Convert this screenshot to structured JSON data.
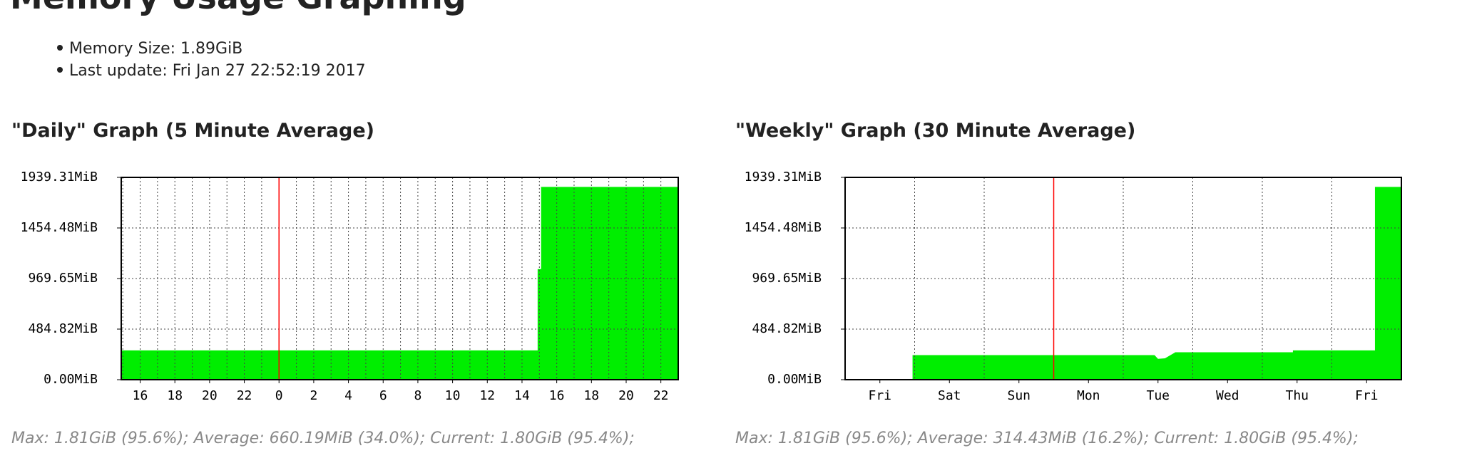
{
  "page": {
    "title": "Memory Usage Graphing",
    "items": [
      "Memory Size: 1.89GiB",
      "Last update: Fri Jan 27 22:52:19 2017"
    ]
  },
  "chart_data": [
    {
      "type": "area",
      "title": "\"Daily\" Graph (5 Minute Average)",
      "x": [
        14.91,
        38.9,
        38.9,
        39.1,
        39.1,
        47.0
      ],
      "values": [
        281,
        281,
        1060,
        1060,
        1848,
        1848
      ],
      "color": "#00ee00",
      "xlim": [
        14.91,
        47.0
      ],
      "xticks": [
        16,
        18,
        20,
        22,
        {
          "value": 24,
          "label": "0"
        },
        {
          "value": 26,
          "label": "2"
        },
        {
          "value": 28,
          "label": "4"
        },
        {
          "value": 30,
          "label": "6"
        },
        {
          "value": 32,
          "label": "8"
        },
        {
          "value": 34,
          "label": "10"
        },
        {
          "value": 36,
          "label": "12"
        },
        {
          "value": 38,
          "label": "14"
        },
        {
          "value": 40,
          "label": "16"
        },
        {
          "value": 42,
          "label": "18"
        },
        {
          "value": 44,
          "label": "20"
        },
        {
          "value": 46,
          "label": "22"
        }
      ],
      "xgrid": [
        15,
        16,
        17,
        18,
        19,
        20,
        21,
        22,
        23,
        24,
        25,
        26,
        27,
        28,
        29,
        30,
        31,
        32,
        33,
        34,
        35,
        36,
        37,
        38,
        39,
        40,
        41,
        42,
        43,
        44,
        45,
        46
      ],
      "marker": {
        "value": 24,
        "color": "#ff0000"
      },
      "ylim": [
        0,
        1939.31
      ],
      "yticks": [
        {
          "value": 0,
          "label": "0.00MiB"
        },
        {
          "value": 484.82,
          "label": "484.82MiB"
        },
        {
          "value": 969.65,
          "label": "969.65MiB"
        },
        {
          "value": 1454.48,
          "label": "1454.48MiB"
        },
        {
          "value": 1939.31,
          "label": "1939.31MiB"
        }
      ],
      "grid": true,
      "summary": "Max: 1.81GiB (95.6%); Average: 660.19MiB (34.0%); Current: 1.80GiB (95.4%);"
    },
    {
      "type": "area",
      "title": "\"Weekly\" Graph (30 Minute Average)",
      "x": [
        0.97,
        4.45,
        4.5,
        4.6,
        4.75,
        6.44,
        6.44,
        7.62,
        7.62,
        8.0
      ],
      "values": [
        236,
        236,
        200,
        205,
        263,
        263,
        281,
        281,
        1848,
        1848
      ],
      "color": "#00ee00",
      "xlim": [
        0,
        8
      ],
      "xticks": [
        {
          "value": 0.5,
          "label": "Fri"
        },
        {
          "value": 1.5,
          "label": "Sat"
        },
        {
          "value": 2.5,
          "label": "Sun"
        },
        {
          "value": 3.5,
          "label": "Mon"
        },
        {
          "value": 4.5,
          "label": "Tue"
        },
        {
          "value": 5.5,
          "label": "Wed"
        },
        {
          "value": 6.5,
          "label": "Thu"
        },
        {
          "value": 7.5,
          "label": "Fri"
        }
      ],
      "xgrid": [
        1,
        2,
        3,
        4,
        5,
        6,
        7
      ],
      "marker": {
        "value": 3,
        "color": "#ff0000"
      },
      "ylim": [
        0,
        1939.31
      ],
      "yticks": [
        {
          "value": 0,
          "label": "0.00MiB"
        },
        {
          "value": 484.82,
          "label": "484.82MiB"
        },
        {
          "value": 969.65,
          "label": "969.65MiB"
        },
        {
          "value": 1454.48,
          "label": "1454.48MiB"
        },
        {
          "value": 1939.31,
          "label": "1939.31MiB"
        }
      ],
      "grid": true,
      "summary": "Max: 1.81GiB (95.6%); Average: 314.43MiB (16.2%); Current: 1.80GiB (95.4%);"
    }
  ]
}
